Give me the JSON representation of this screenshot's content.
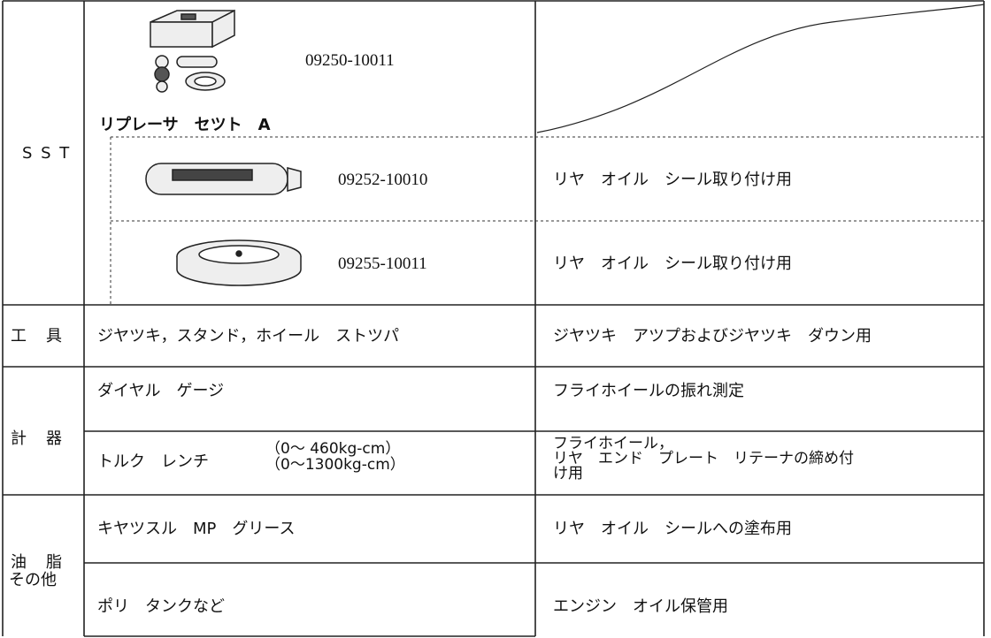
{
  "table": {
    "sst": {
      "label": "S S T",
      "rows": [
        {
          "part_number": "09250-10011",
          "name": "リプレーサ　セツト　A"
        },
        {
          "part_number": "09252-10010",
          "use": "リヤ　オイル　シール取り付け用"
        },
        {
          "part_number": "09255-10011",
          "use": "リヤ　オイル　シール取り付け用"
        }
      ]
    },
    "tools": {
      "label": "工　具",
      "item": "ジヤツキ，スタンド，ホイール　ストツパ",
      "use": "ジヤツキ　アツプおよびジヤツキ　ダウン用"
    },
    "instruments": {
      "label": "計　器",
      "rows": [
        {
          "item": "ダイヤル　ゲージ",
          "use": "フライホイールの振れ測定"
        },
        {
          "item": "トルク　レンチ",
          "ranges": [
            "（0～ 460kg-cm）",
            "（0～1300kg-cm）"
          ],
          "use": [
            "フライホイール，",
            "リヤ　エンド　プレート　リテーナの締め付",
            "け用"
          ]
        }
      ]
    },
    "grease": {
      "label": [
        "油　脂",
        "その他"
      ],
      "rows": [
        {
          "item": "キヤツスル　MP　グリース",
          "use": "リヤ　オイル　シールへの塗布用"
        },
        {
          "item": "ポリ　タンクなど",
          "use": "エンジン　オイル保管用"
        }
      ]
    }
  }
}
